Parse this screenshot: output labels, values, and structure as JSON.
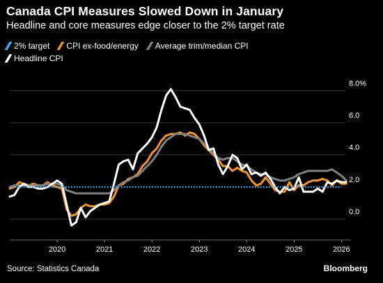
{
  "header": {
    "title": "Canada CPI Measures Slowed Down in January",
    "subtitle": "Headline and core measures edge closer to the 2% target rate"
  },
  "footer": {
    "source": "Source: Statistics Canada",
    "brand": "Bloomberg"
  },
  "colors": {
    "background": "#000000",
    "target": "#3fa9f5",
    "core": "#f7931e",
    "trim_median": "#7f7f7f",
    "headline": "#ffffff",
    "grid": "#333333"
  },
  "chart_data": {
    "type": "line",
    "title": "Canada CPI Measures Slowed Down in January",
    "subtitle": "Headline and core measures edge closer to the 2% target rate",
    "ylim": [
      -1.3,
      8.8
    ],
    "xlim": [
      2019.0,
      2026.2
    ],
    "y_ticks": [
      {
        "value": 8,
        "label": "8.0%"
      },
      {
        "value": 6,
        "label": "6.0"
      },
      {
        "value": 4,
        "label": "4.0"
      },
      {
        "value": 2,
        "label": "2.0"
      },
      {
        "value": 0,
        "label": "0.0"
      }
    ],
    "x_ticks": [
      {
        "value": 2020,
        "label": "2020"
      },
      {
        "value": 2021,
        "label": "2021"
      },
      {
        "value": 2022,
        "label": "2022"
      },
      {
        "value": 2023,
        "label": "2023"
      },
      {
        "value": 2024,
        "label": "2024"
      },
      {
        "value": 2025,
        "label": "2025"
      },
      {
        "value": 2026,
        "label": "2026"
      }
    ],
    "grid": true,
    "legend_position": "top-left",
    "series": [
      {
        "name": "2% target",
        "style": "dotted",
        "color": "#3fa9f5",
        "x": [
          2019.0,
          2026.0
        ],
        "values": [
          2.0,
          2.0
        ]
      },
      {
        "name": "CPI ex-food/energy",
        "color": "#f7931e",
        "x": [
          2019.0,
          2019.1,
          2019.2,
          2019.3,
          2019.4,
          2019.5,
          2019.6,
          2019.7,
          2019.8,
          2019.9,
          2020.0,
          2020.1,
          2020.2,
          2020.3,
          2020.4,
          2020.5,
          2020.6,
          2020.7,
          2020.8,
          2020.9,
          2021.0,
          2021.1,
          2021.2,
          2021.3,
          2021.4,
          2021.5,
          2021.6,
          2021.7,
          2021.8,
          2021.9,
          2022.0,
          2022.1,
          2022.2,
          2022.3,
          2022.4,
          2022.5,
          2022.6,
          2022.7,
          2022.8,
          2022.9,
          2023.0,
          2023.1,
          2023.2,
          2023.3,
          2023.4,
          2023.5,
          2023.6,
          2023.7,
          2023.8,
          2023.9,
          2024.0,
          2024.1,
          2024.2,
          2024.3,
          2024.4,
          2024.5,
          2024.6,
          2024.7,
          2024.8,
          2024.9,
          2025.0,
          2025.1,
          2025.2,
          2025.3,
          2025.4,
          2025.5,
          2025.6,
          2025.7,
          2025.8,
          2025.9,
          2026.0,
          2026.1
        ],
        "values": [
          1.9,
          2.0,
          2.3,
          2.2,
          2.1,
          2.2,
          2.1,
          2.1,
          2.3,
          2.1,
          2.0,
          1.9,
          0.6,
          0.2,
          0.3,
          0.7,
          0.9,
          0.8,
          0.8,
          0.9,
          0.9,
          1.0,
          1.4,
          2.1,
          2.2,
          2.5,
          2.6,
          2.8,
          3.3,
          3.6,
          4.1,
          4.4,
          4.9,
          5.2,
          5.3,
          5.3,
          5.4,
          5.2,
          5.4,
          5.3,
          5.0,
          4.6,
          4.3,
          4.0,
          3.7,
          3.3,
          3.3,
          3.0,
          3.2,
          3.0,
          2.9,
          2.4,
          2.1,
          2.2,
          2.6,
          2.2,
          1.8,
          1.7,
          1.7,
          2.3,
          1.8,
          2.1,
          2.1,
          2.3,
          2.4,
          2.4,
          2.5,
          2.4,
          2.1,
          2.4,
          2.2,
          2.2
        ]
      },
      {
        "name": "Average trim/median CPI",
        "color": "#7f7f7f",
        "x": [
          2019.0,
          2019.1,
          2019.2,
          2019.3,
          2019.4,
          2019.5,
          2019.6,
          2019.7,
          2019.8,
          2019.9,
          2020.0,
          2020.1,
          2020.2,
          2020.3,
          2020.4,
          2020.5,
          2020.6,
          2020.7,
          2020.8,
          2020.9,
          2021.0,
          2021.1,
          2021.2,
          2021.3,
          2021.4,
          2021.5,
          2021.6,
          2021.7,
          2021.8,
          2021.9,
          2022.0,
          2022.1,
          2022.2,
          2022.3,
          2022.4,
          2022.5,
          2022.6,
          2022.7,
          2022.8,
          2022.9,
          2023.0,
          2023.1,
          2023.2,
          2023.3,
          2023.4,
          2023.5,
          2023.6,
          2023.7,
          2023.8,
          2023.9,
          2024.0,
          2024.1,
          2024.2,
          2024.3,
          2024.4,
          2024.5,
          2024.6,
          2024.7,
          2024.8,
          2024.9,
          2025.0,
          2025.1,
          2025.2,
          2025.3,
          2025.4,
          2025.5,
          2025.6,
          2025.7,
          2025.8,
          2025.9,
          2026.0,
          2026.1
        ],
        "values": [
          2.0,
          2.1,
          2.1,
          2.1,
          2.1,
          2.1,
          2.1,
          2.1,
          2.2,
          2.2,
          2.2,
          2.1,
          1.8,
          1.7,
          1.6,
          1.6,
          1.6,
          1.6,
          1.6,
          1.6,
          1.6,
          1.6,
          1.8,
          2.1,
          2.3,
          2.4,
          2.6,
          2.7,
          3.0,
          3.3,
          3.6,
          4.0,
          4.5,
          4.9,
          5.1,
          5.3,
          5.3,
          5.3,
          5.2,
          5.1,
          5.0,
          4.7,
          4.4,
          4.1,
          3.8,
          3.7,
          3.8,
          3.8,
          3.6,
          3.4,
          3.3,
          3.1,
          2.9,
          2.8,
          2.8,
          2.6,
          2.5,
          2.4,
          2.4,
          2.5,
          2.6,
          2.8,
          2.9,
          3.0,
          3.0,
          3.0,
          3.0,
          3.0,
          3.1,
          2.9,
          2.7,
          2.4
        ]
      },
      {
        "name": "Headline CPI",
        "color": "#ffffff",
        "x": [
          2019.0,
          2019.1,
          2019.2,
          2019.3,
          2019.4,
          2019.5,
          2019.6,
          2019.7,
          2019.8,
          2019.9,
          2020.0,
          2020.1,
          2020.2,
          2020.3,
          2020.4,
          2020.5,
          2020.6,
          2020.7,
          2020.8,
          2020.9,
          2021.0,
          2021.1,
          2021.2,
          2021.3,
          2021.4,
          2021.5,
          2021.6,
          2021.7,
          2021.8,
          2021.9,
          2022.0,
          2022.1,
          2022.2,
          2022.3,
          2022.4,
          2022.5,
          2022.6,
          2022.7,
          2022.8,
          2022.9,
          2023.0,
          2023.1,
          2023.2,
          2023.3,
          2023.4,
          2023.5,
          2023.6,
          2023.7,
          2023.8,
          2023.9,
          2024.0,
          2024.1,
          2024.2,
          2024.3,
          2024.4,
          2024.5,
          2024.6,
          2024.7,
          2024.8,
          2024.9,
          2025.0,
          2025.1,
          2025.2,
          2025.3,
          2025.4,
          2025.5,
          2025.6,
          2025.7,
          2025.8,
          2025.9,
          2026.0,
          2026.1
        ],
        "values": [
          1.4,
          1.5,
          2.0,
          2.2,
          2.0,
          2.0,
          1.9,
          1.9,
          2.0,
          2.2,
          2.4,
          2.2,
          0.9,
          -0.4,
          -0.2,
          0.7,
          0.1,
          0.5,
          0.7,
          0.9,
          1.0,
          1.1,
          2.2,
          3.4,
          3.6,
          3.7,
          3.1,
          4.1,
          4.4,
          4.7,
          5.1,
          5.7,
          6.8,
          7.7,
          8.1,
          7.6,
          7.0,
          6.9,
          6.8,
          6.3,
          5.9,
          5.2,
          4.3,
          4.4,
          3.4,
          2.8,
          3.3,
          4.0,
          3.8,
          3.1,
          3.4,
          2.8,
          2.9,
          2.7,
          2.9,
          2.5,
          2.0,
          1.6,
          2.0,
          1.8,
          1.9,
          2.6,
          1.7,
          1.7,
          1.7,
          1.9,
          1.7,
          2.3,
          2.2,
          2.4,
          2.3,
          2.3
        ]
      }
    ]
  }
}
